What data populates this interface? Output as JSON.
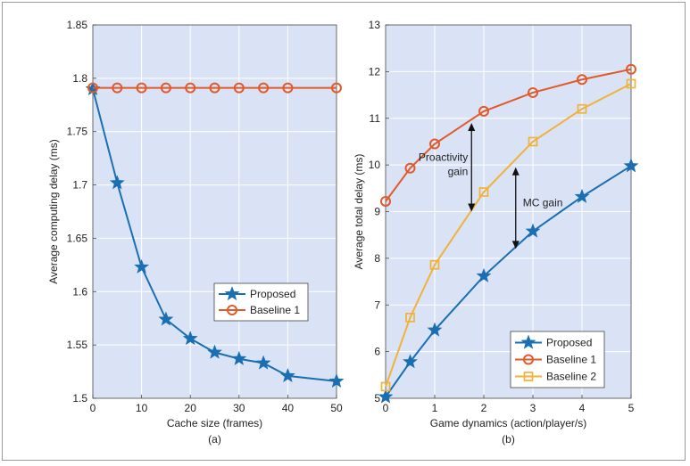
{
  "colors": {
    "plot_bg": "#d9e3f5",
    "grid": "#ffffff",
    "proposed": "#1a6fb3",
    "baseline1": "#e05a2b",
    "baseline2": "#f0b23a",
    "annotation": "#111111"
  },
  "chart_data": [
    {
      "type": "line",
      "panel_label": "(a)",
      "xlabel": "Cache size (frames)",
      "ylabel": "Average computing delay (ms)",
      "xlim": [
        0,
        50
      ],
      "ylim": [
        1.5,
        1.85
      ],
      "xticks": [
        0,
        10,
        20,
        30,
        40,
        50
      ],
      "yticks": [
        1.5,
        1.55,
        1.6,
        1.65,
        1.7,
        1.75,
        1.8,
        1.85
      ],
      "grid": true,
      "legend_position": "center-right",
      "series": [
        {
          "name": "Proposed",
          "color_key": "proposed",
          "marker": "star",
          "x": [
            0,
            5,
            10,
            15,
            20,
            25,
            30,
            35,
            40,
            50
          ],
          "y": [
            1.79,
            1.702,
            1.623,
            1.574,
            1.556,
            1.543,
            1.537,
            1.533,
            1.521,
            1.516
          ]
        },
        {
          "name": "Baseline 1",
          "color_key": "baseline1",
          "marker": "circle",
          "x": [
            0,
            5,
            10,
            15,
            20,
            25,
            30,
            35,
            40,
            50
          ],
          "y": [
            1.791,
            1.791,
            1.791,
            1.791,
            1.791,
            1.791,
            1.791,
            1.791,
            1.791,
            1.791
          ]
        }
      ]
    },
    {
      "type": "line",
      "panel_label": "(b)",
      "xlabel": "Game dynamics (action/player/s)",
      "ylabel": "Average total delay (ms)",
      "xlim": [
        0,
        5
      ],
      "ylim": [
        5,
        13
      ],
      "xticks": [
        0,
        1,
        2,
        3,
        4,
        5
      ],
      "yticks": [
        5,
        6,
        7,
        8,
        9,
        10,
        11,
        12,
        13
      ],
      "grid": true,
      "legend_position": "bottom-right",
      "series": [
        {
          "name": "Proposed",
          "color_key": "proposed",
          "marker": "star",
          "x": [
            0,
            0.5,
            1,
            2,
            3,
            4,
            5
          ],
          "y": [
            5.03,
            5.78,
            6.46,
            7.62,
            8.58,
            9.32,
            9.98
          ]
        },
        {
          "name": "Baseline 1",
          "color_key": "baseline1",
          "marker": "circle",
          "x": [
            0,
            0.5,
            1,
            2,
            3,
            4,
            5
          ],
          "y": [
            9.22,
            9.93,
            10.45,
            11.15,
            11.55,
            11.83,
            12.05
          ]
        },
        {
          "name": "Baseline 2",
          "color_key": "baseline2",
          "marker": "square",
          "x": [
            0,
            0.5,
            1,
            2,
            3,
            4,
            5
          ],
          "y": [
            5.25,
            6.73,
            7.86,
            9.42,
            10.5,
            11.2,
            11.74
          ]
        }
      ],
      "annotations": [
        {
          "text_lines": [
            "Proactivity",
            "gain"
          ],
          "x": 1.75,
          "y_from": 9.0,
          "y_to": 10.9
        },
        {
          "text_lines": [
            "MC gain"
          ],
          "x": 2.65,
          "y_from": 8.2,
          "y_to": 9.95
        }
      ]
    }
  ]
}
